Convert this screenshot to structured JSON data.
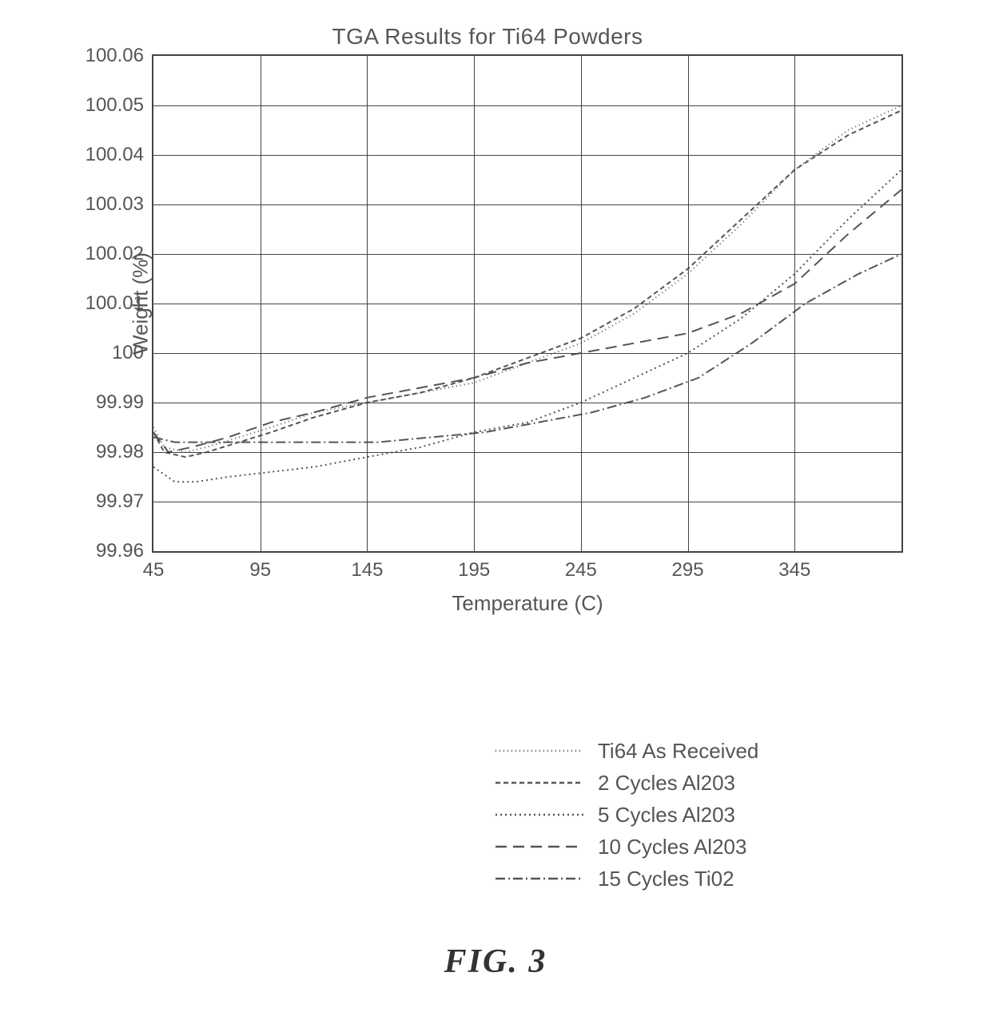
{
  "chart": {
    "type": "line",
    "title": "TGA Results for Ti64 Powders",
    "xlabel": "Temperature (C)",
    "ylabel": "Weight (%)",
    "title_fontsize": 28,
    "label_fontsize": 26,
    "tick_fontsize": 24,
    "background_color": "#ffffff",
    "grid_color": "#444444",
    "axis_color": "#444444",
    "text_color": "#555555",
    "line_width": 2,
    "xlim": [
      45,
      395
    ],
    "ylim": [
      99.96,
      100.06
    ],
    "xticks": [
      45,
      95,
      145,
      195,
      245,
      295,
      345
    ],
    "yticks": [
      99.96,
      99.97,
      99.98,
      99.99,
      100,
      100.01,
      100.02,
      100.03,
      100.04,
      100.05,
      100.06
    ],
    "series": [
      {
        "name": "Ti64 As Received",
        "dash": "1,4",
        "color": "#555555",
        "data": [
          [
            45,
            99.985
          ],
          [
            50,
            99.981
          ],
          [
            60,
            99.98
          ],
          [
            70,
            99.981
          ],
          [
            85,
            99.983
          ],
          [
            100,
            99.985
          ],
          [
            120,
            99.988
          ],
          [
            145,
            99.99
          ],
          [
            170,
            99.992
          ],
          [
            195,
            99.994
          ],
          [
            220,
            99.998
          ],
          [
            245,
            100.002
          ],
          [
            270,
            100.008
          ],
          [
            295,
            100.016
          ],
          [
            320,
            100.026
          ],
          [
            345,
            100.037
          ],
          [
            370,
            100.045
          ],
          [
            395,
            100.05
          ]
        ]
      },
      {
        "name": "2 Cycles Al203",
        "dash": "6,4",
        "color": "#555555",
        "data": [
          [
            45,
            99.984
          ],
          [
            50,
            99.98
          ],
          [
            60,
            99.979
          ],
          [
            70,
            99.98
          ],
          [
            85,
            99.982
          ],
          [
            100,
            99.984
          ],
          [
            120,
            99.987
          ],
          [
            145,
            99.99
          ],
          [
            170,
            99.992
          ],
          [
            195,
            99.995
          ],
          [
            220,
            99.999
          ],
          [
            245,
            100.003
          ],
          [
            270,
            100.009
          ],
          [
            295,
            100.017
          ],
          [
            320,
            100.027
          ],
          [
            345,
            100.037
          ],
          [
            370,
            100.044
          ],
          [
            395,
            100.049
          ]
        ]
      },
      {
        "name": "5 Cycles Al203",
        "dash": "2,4",
        "color": "#555555",
        "data": [
          [
            45,
            99.977
          ],
          [
            55,
            99.974
          ],
          [
            65,
            99.974
          ],
          [
            80,
            99.975
          ],
          [
            100,
            99.976
          ],
          [
            120,
            99.977
          ],
          [
            145,
            99.979
          ],
          [
            170,
            99.981
          ],
          [
            195,
            99.984
          ],
          [
            220,
            99.986
          ],
          [
            245,
            99.99
          ],
          [
            270,
            99.995
          ],
          [
            295,
            100.0
          ],
          [
            320,
            100.007
          ],
          [
            345,
            100.016
          ],
          [
            370,
            100.027
          ],
          [
            395,
            100.037
          ]
        ]
      },
      {
        "name": "10 Cycles Al203",
        "dash": "14,8",
        "color": "#555555",
        "data": [
          [
            45,
            99.984
          ],
          [
            52,
            99.98
          ],
          [
            63,
            99.981
          ],
          [
            80,
            99.983
          ],
          [
            100,
            99.986
          ],
          [
            120,
            99.988
          ],
          [
            145,
            99.991
          ],
          [
            170,
            99.993
          ],
          [
            195,
            99.995
          ],
          [
            220,
            99.998
          ],
          [
            245,
            100.0
          ],
          [
            270,
            100.002
          ],
          [
            295,
            100.004
          ],
          [
            320,
            100.008
          ],
          [
            345,
            100.014
          ],
          [
            370,
            100.024
          ],
          [
            395,
            100.033
          ]
        ]
      },
      {
        "name": "15 Cycles Ti02",
        "dash": "12,4,2,4",
        "color": "#555555",
        "data": [
          [
            45,
            99.983
          ],
          [
            55,
            99.982
          ],
          [
            70,
            99.982
          ],
          [
            90,
            99.982
          ],
          [
            110,
            99.982
          ],
          [
            130,
            99.982
          ],
          [
            150,
            99.982
          ],
          [
            175,
            99.983
          ],
          [
            200,
            99.984
          ],
          [
            225,
            99.986
          ],
          [
            250,
            99.988
          ],
          [
            275,
            99.991
          ],
          [
            300,
            99.995
          ],
          [
            325,
            100.002
          ],
          [
            350,
            100.01
          ],
          [
            375,
            100.016
          ],
          [
            395,
            100.02
          ]
        ]
      }
    ],
    "legend_position": "below-right"
  },
  "figure_label": "FIG.  3"
}
